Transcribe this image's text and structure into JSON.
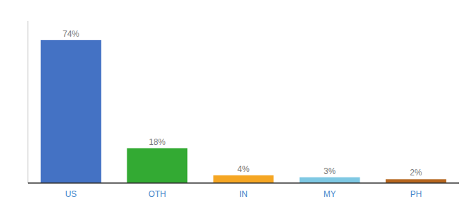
{
  "chart_data": {
    "type": "bar",
    "categories": [
      "US",
      "OTH",
      "IN",
      "MY",
      "PH"
    ],
    "values": [
      74,
      18,
      4,
      3,
      2
    ],
    "value_labels": [
      "74%",
      "18%",
      "4%",
      "3%",
      "2%"
    ],
    "colors": [
      "#4472c4",
      "#33aa33",
      "#f5a623",
      "#7ec8e3",
      "#b5651d"
    ],
    "ylim": [
      0,
      84
    ],
    "data_labels": true,
    "tick_labels": "x",
    "grid": false
  }
}
